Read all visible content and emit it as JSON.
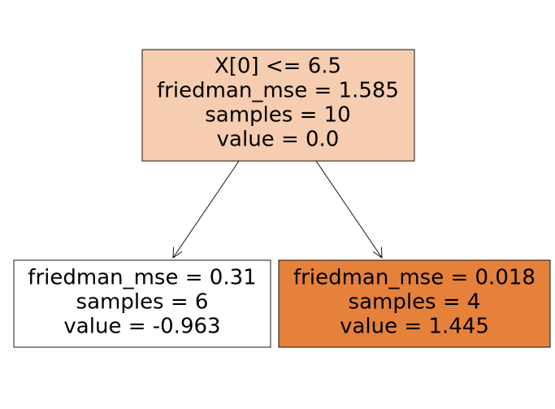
{
  "nodes": [
    {
      "lines": [
        "X[0] <= 6.5",
        "friedman_mse = 1.585",
        "samples = 10",
        "value = 0.0"
      ]
    },
    {
      "lines": [
        "friedman_mse = 0.31",
        "samples = 6",
        "value = -0.963"
      ]
    },
    {
      "lines": [
        "friedman_mse = 0.018",
        "samples = 4",
        "value = 1.445"
      ]
    }
  ]
}
